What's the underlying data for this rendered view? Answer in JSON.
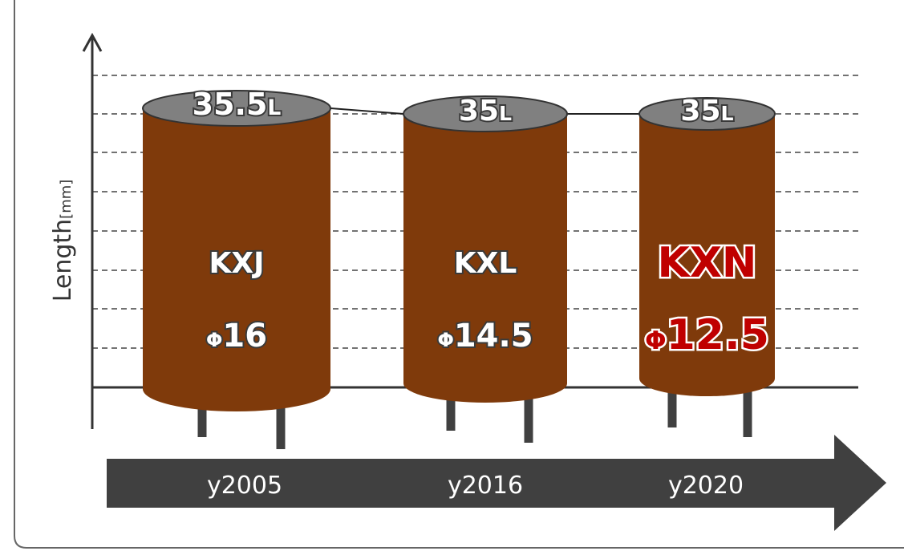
{
  "axis": {
    "label": "Length",
    "unit": "[mm]"
  },
  "products": [
    {
      "length": "35.5",
      "length_unit": "L",
      "name": "KXJ",
      "diameter_symbol": "Φ",
      "diameter": "16",
      "year": "y2005"
    },
    {
      "length": "35",
      "length_unit": "L",
      "name": "KXL",
      "diameter_symbol": "Φ",
      "diameter": "14.5",
      "year": "y2016"
    },
    {
      "length": "35",
      "length_unit": "L",
      "name": "KXN",
      "diameter_symbol": "Φ",
      "diameter": "12.5",
      "year": "y2020"
    }
  ]
}
